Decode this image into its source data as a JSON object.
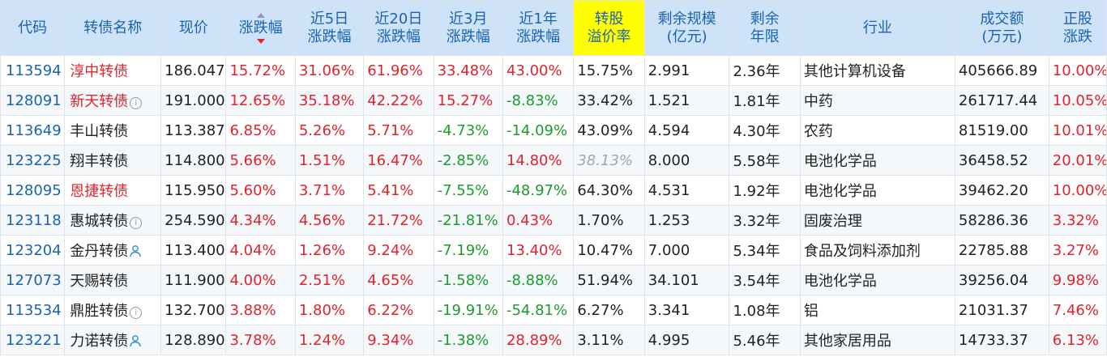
{
  "headers": {
    "code": "代码",
    "name": "转债名称",
    "price": "现价",
    "change": "涨跌幅",
    "d5_l1": "近5日",
    "d5_l2": "涨跌幅",
    "d20_l1": "近20日",
    "d20_l2": "涨跌幅",
    "m3_l1": "近3月",
    "m3_l2": "涨跌幅",
    "y1_l1": "近1年",
    "y1_l2": "涨跌幅",
    "premium_l1": "转股",
    "premium_l2": "溢价率",
    "scale_l1": "剩余规模",
    "scale_l2": "(亿元)",
    "years_l1": "剩余",
    "years_l2": "年限",
    "industry": "行业",
    "volume_l1": "成交额",
    "volume_l2": "(万元)",
    "stock_l1": "正股",
    "stock_l2": "涨跌"
  },
  "colors": {
    "header_bg": "#cfe3f8",
    "header_text": "#1a63b0",
    "highlight": "#ffff00",
    "up": "#e0232c",
    "down": "#1e9a2e"
  },
  "rows": [
    {
      "code": "113594",
      "name": "淳中转债",
      "name_red": true,
      "icon": "none",
      "price": "186.047",
      "change": "15.72%",
      "d5": "31.06%",
      "d20": "61.96%",
      "m3": "33.48%",
      "y1": "43.00%",
      "premium": "15.75%",
      "premium_style": "normal",
      "scale": "2.991",
      "years": "2.36年",
      "industry": "其他计算机设备",
      "volume": "405666.89",
      "stock": "10.00%"
    },
    {
      "code": "128091",
      "name": "新天转债",
      "name_red": true,
      "icon": "info",
      "price": "191.000",
      "change": "12.65%",
      "d5": "35.18%",
      "d20": "42.22%",
      "m3": "15.27%",
      "y1": "-8.83%",
      "premium": "33.42%",
      "premium_style": "normal",
      "scale": "1.521",
      "years": "1.81年",
      "industry": "中药",
      "volume": "261717.44",
      "stock": "10.05%"
    },
    {
      "code": "113649",
      "name": "丰山转债",
      "name_red": false,
      "icon": "none",
      "price": "113.387",
      "change": "6.85%",
      "d5": "5.26%",
      "d20": "5.71%",
      "m3": "-4.73%",
      "y1": "-14.09%",
      "premium": "43.09%",
      "premium_style": "normal",
      "scale": "4.594",
      "years": "4.30年",
      "industry": "农药",
      "volume": "81519.00",
      "stock": "10.01%"
    },
    {
      "code": "123225",
      "name": "翔丰转债",
      "name_red": false,
      "icon": "none",
      "price": "114.800",
      "change": "5.66%",
      "d5": "1.51%",
      "d20": "16.47%",
      "m3": "-2.85%",
      "y1": "14.80%",
      "premium": "38.13%",
      "premium_style": "gray-it",
      "scale": "8.000",
      "years": "5.58年",
      "industry": "电池化学品",
      "volume": "36458.52",
      "stock": "20.01%"
    },
    {
      "code": "128095",
      "name": "恩捷转债",
      "name_red": true,
      "icon": "none",
      "price": "115.950",
      "change": "5.60%",
      "d5": "3.71%",
      "d20": "5.41%",
      "m3": "-7.55%",
      "y1": "-48.97%",
      "premium": "64.30%",
      "premium_style": "normal",
      "scale": "4.531",
      "years": "1.92年",
      "industry": "电池化学品",
      "volume": "39462.20",
      "stock": "10.00%"
    },
    {
      "code": "123118",
      "name": "惠城转债",
      "name_red": false,
      "icon": "info",
      "price": "254.590",
      "change": "4.34%",
      "d5": "4.56%",
      "d20": "21.72%",
      "m3": "-21.81%",
      "y1": "0.43%",
      "premium": "1.70%",
      "premium_style": "normal",
      "scale": "1.253",
      "years": "3.32年",
      "industry": "固废治理",
      "volume": "58286.36",
      "stock": "3.32%"
    },
    {
      "code": "123204",
      "name": "金丹转债",
      "name_red": false,
      "icon": "person",
      "price": "113.400",
      "change": "4.04%",
      "d5": "1.26%",
      "d20": "9.24%",
      "m3": "-7.19%",
      "y1": "13.40%",
      "premium": "10.47%",
      "premium_style": "normal",
      "scale": "7.000",
      "years": "5.34年",
      "industry": "食品及饲料添加剂",
      "volume": "22785.88",
      "stock": "3.27%"
    },
    {
      "code": "127073",
      "name": "天赐转债",
      "name_red": false,
      "icon": "none",
      "price": "111.900",
      "change": "4.00%",
      "d5": "2.51%",
      "d20": "4.65%",
      "m3": "-1.58%",
      "y1": "-8.88%",
      "premium": "51.94%",
      "premium_style": "normal",
      "scale": "34.101",
      "years": "3.54年",
      "industry": "电池化学品",
      "volume": "39256.04",
      "stock": "9.98%"
    },
    {
      "code": "113534",
      "name": "鼎胜转债",
      "name_red": false,
      "icon": "info",
      "price": "132.700",
      "change": "3.88%",
      "d5": "1.80%",
      "d20": "6.22%",
      "m3": "-19.91%",
      "y1": "-54.81%",
      "premium": "6.27%",
      "premium_style": "normal",
      "scale": "3.341",
      "years": "1.08年",
      "industry": "铝",
      "volume": "21031.37",
      "stock": "7.46%"
    },
    {
      "code": "123221",
      "name": "力诺转债",
      "name_red": false,
      "icon": "person",
      "price": "128.890",
      "change": "3.78%",
      "d5": "1.24%",
      "d20": "9.34%",
      "m3": "-1.38%",
      "y1": "28.89%",
      "premium": "3.11%",
      "premium_style": "normal",
      "scale": "4.995",
      "years": "5.46年",
      "industry": "其他家居用品",
      "volume": "14733.37",
      "stock": "6.13%"
    }
  ]
}
